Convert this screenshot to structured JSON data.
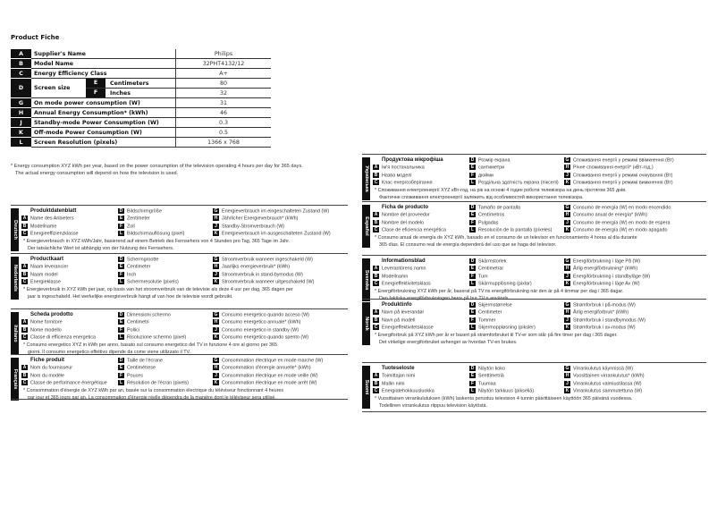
{
  "title": "Product Fiche",
  "fiche": [
    {
      "letter": "A",
      "label": "Supplier's Name",
      "value": "Philips"
    },
    {
      "letter": "B",
      "label": "Model Name",
      "value": "32PHT4132/12"
    },
    {
      "letter": "C",
      "label": "Energy Efficiency Class",
      "value": "A+"
    },
    {
      "letter": "D",
      "label": "Screen size",
      "sub": [
        {
          "letter": "E",
          "label": "Centimeters",
          "value": "80"
        },
        {
          "letter": "F",
          "label": "Inches",
          "value": "32"
        }
      ]
    },
    {
      "letter": "G",
      "label": "On mode power consumption (W)",
      "value": "31"
    },
    {
      "letter": "H",
      "label": "Annual Energy Consumption* (kWh)",
      "value": "46"
    },
    {
      "letter": "J",
      "label": "Standby-mode Power Consumption (W)",
      "value": "0.3"
    },
    {
      "letter": "K",
      "label": "Off-mode Power Consumption (W)",
      "value": "0.5"
    },
    {
      "letter": "L",
      "label": "Screen Resolution (pixels)",
      "value": "1366 x 768"
    }
  ],
  "footnote": [
    "* Energy consumption XYZ kWh per year, based on the power consumption of the television operating 4 hours per day for 365 days.",
    "The actual energy consumption will depend on how the television is used."
  ],
  "blocks": [
    {
      "lang": "Deutsch",
      "title": "Produktdatenblatt",
      "A": "Name des Anbieters",
      "B": "Modellname",
      "C": "Energieeffizienzklasse",
      "D": "Bildschirmgröße",
      "E": "Zentimeter",
      "F": "Zoll",
      "L": "Bildschirmauflösung (pixel)",
      "G": "Energieverbrauch im eingeschalteten Zustand (W)",
      "H": "Jährlicher Energieverbrauch* (kWh)",
      "J": "Standby-Stromverbrauch (W)",
      "K": "Energieverbrauch im ausgeschalteten Zustand (W)",
      "note": [
        "* Energieverbrauch in XYZ kWh/Jahr, basierend auf einem Betrieb des Fernsehers von 4 Stunden pro Tag, 365 Tage im Jahr.",
        "Der tatsächliche Wert ist abhängig von der Nutzung des Fernsehers."
      ]
    },
    {
      "lang": "Nederlands",
      "title": "Productkaart",
      "A": "Naam leverancier",
      "B": "Naam model",
      "C": "Energieklasse",
      "D": "Schermgrootte",
      "E": "Centimeter",
      "F": "Inch",
      "L": "Schermresolutie (pixels)",
      "G": "Stroomverbruik wanneer ingeschakeld (W)",
      "H": "Jaarlijks energieverbruik* (kWh)",
      "J": "Stroomverbruik in stand-bymodus (W)",
      "K": "Stroomverbruik wanneer uitgeschakeld (W)",
      "note": [
        "* Energieverbruik in XYZ kWh per jaar, op basis van het stroomverbruik van de televisie als deze 4 uur per dag, 365 dagen per",
        "jaar is ingeschakeld. Het werkelijke energieverbruik hangt af van hoe de televisie wordt gebruikt."
      ]
    },
    {
      "lang": "Italiano",
      "title": "Scheda prodotto",
      "A": "Nome fornitore",
      "B": "Nome modello",
      "C": "Classe di efficienza energetica",
      "D": "Dimensioni schermo",
      "E": "Centimetri",
      "F": "Pollici",
      "L": "Risoluzione schermo (pixel)",
      "G": "Consumo energetico quando acceso (W)",
      "H": "Consumo energetico annuale* (kWh)",
      "J": "Consumo energetico in standby (W)",
      "K": "Consumo energetico quando spento (W)",
      "note": [
        "* Consumo energetico XYZ in kWh per anno, basato sul consumo energetico del TV in funzione 4 ore al giorno per 365",
        "giorni. Il consumo energetico effettivo dipende da come viene utilizzato il TV."
      ]
    },
    {
      "lang": "Français",
      "title": "Fiche produit",
      "A": "Nom du fournisseur",
      "B": "Nom du modèle",
      "C": "Classe de performance énergétique",
      "D": "Taille de l'écrane",
      "E": "Centimètrese",
      "F": "Pouces",
      "L": "Résolution de l'écran (pixels)",
      "G": "Consommation électrique en mode marche (W)",
      "H": "Consommation d'énergie annuelle* (kWh)",
      "J": "Consommation électrique en mode veille (W)",
      "K": "Consommation électrique en mode arrêt (W)",
      "note": [
        "* Consommation d'énergie de XYZ kWh par an, basée sur la consommation électrique du téléviseur fonctionnant 4 heures",
        "par jour et 365 jours par an. La consommation d'énergie réelle dépendra de la manière dont le téléviseur sera utilisé."
      ]
    },
    {
      "lang": "Українська",
      "title": "Продуктова мікрофіша",
      "A": "Ім'я постачальника",
      "B": "Назва моделі",
      "C": "Клас енергозберігання",
      "D": "Розмір екрана",
      "E": "сантиметри",
      "F": "дюйми",
      "L": "Роздільна здатність екрана (пікселі)",
      "G": "Споживання енергії у режимі ввімкнення (Вт)",
      "H": "Річне споживання енергії* (кВт-год.)",
      "J": "Споживання енергії у режимі очікування (Вт)",
      "K": "Споживання енергії у режимі вимкнення (Вт)",
      "note": [
        "* Споживання електроенергії XYZ кВт-год, на рік на основі 4 годин роботи телевізора на день протягом 365 днів.",
        "Фактичне споживання електроенергії залежить від особливостей використання телевізора."
      ]
    },
    {
      "lang": "Español",
      "title": "Ficha de producto",
      "A": "Nombre del proveedor",
      "B": "Nombre del modelo",
      "C": "Clase de eficiencia energética",
      "D": "Tamaño de pantalla",
      "E": "Centímetros",
      "F": "Pulgadas",
      "L": "Resolución de la pantalla (píxeles)",
      "G": "Consumo de energía (W) en modo encendido",
      "H": "Consumo anual de energía* (kWh)",
      "J": "Consumo de energía (W) en modo de espera",
      "K": "Consumo de energía (W) en modo apagado",
      "note": [
        "* Consumo anual de energía de XYZ kWh, basado en el consumo de un televisor en funcionamiento 4 horas al día durante",
        "365 días. El consumo real de energía dependerá del uso que se haga del televisor."
      ]
    },
    {
      "lang": "Svenska",
      "title": "Informationsblad",
      "A": "Leverantörens namn",
      "B": "Modellnamn",
      "C": "Energieffektivitetsklass",
      "D": "Skärmstorlek",
      "E": "Centimetrar",
      "F": "Tum",
      "L": "Skärmupplösning (pixlar)",
      "G": "Energiförbrukning i läge På (W)",
      "H": "Årlig energiförbrukning* (kWh)",
      "J": "Energiförbrukning i standbyläge (W)",
      "K": "Energiförbrukning i läge Av (W)",
      "note": [
        "* Energiförbrukning XYZ kWh per år, baserat på TV:ns energiförbrukning när den är på 4 timmar per dag i 365 dagar.",
        "Den faktiska energiförbrukningen beror på hur TV:n används."
      ]
    },
    {
      "lang": "Norsk",
      "title": "Produktinfo",
      "A": "Navn på leverandør",
      "B": "Navn på modell",
      "C": "Energieffektivitetsklasse",
      "D": "Skjermstørrelse",
      "E": "Centimeter",
      "F": "Tommer",
      "L": "Skjermoppløsning (piksler)",
      "G": "Strømforbruk i på-modus (W)",
      "H": "Årlig energiforbruk* (kWh)",
      "J": "Strømforbruk i standbymodus (W)",
      "K": "Strømforbruk i av-modus (W)",
      "note": [
        "* Energiforbruk på XYZ kWh per år er basert på strømforbruket til TV-er som står på fire timer per dag i 365 dager.",
        "Det virkelige energiforbruket avhenger av hvordan TV-en brukes."
      ]
    },
    {
      "lang": "Suomi",
      "title": "Tuoteseloste",
      "A": "Toimittajan nimi",
      "B": "Mallin nimi",
      "C": "Energiatehokkuusluokka",
      "D": "Näytön koko",
      "E": "Senttimetriä",
      "F": "Tuumaa",
      "L": "Näytön tarkkuus (pikseliä)",
      "G": "Virrankulutus käynnissä (W)",
      "H": "Vuosittainen virrankulutus* (kWh)",
      "J": "Virrankulutus valmiustilassa (W)",
      "K": "Virrankulutus sammutettuna (W)",
      "note": [
        "* Vuosittaisen virrankulutuksen (kWh) laskenta perustuu television 4 tunnin päivittäiseen käyttöön 365 päivänä vuodessa.",
        "Todellinen virrankulutus riippuu television käytöstä."
      ]
    }
  ]
}
